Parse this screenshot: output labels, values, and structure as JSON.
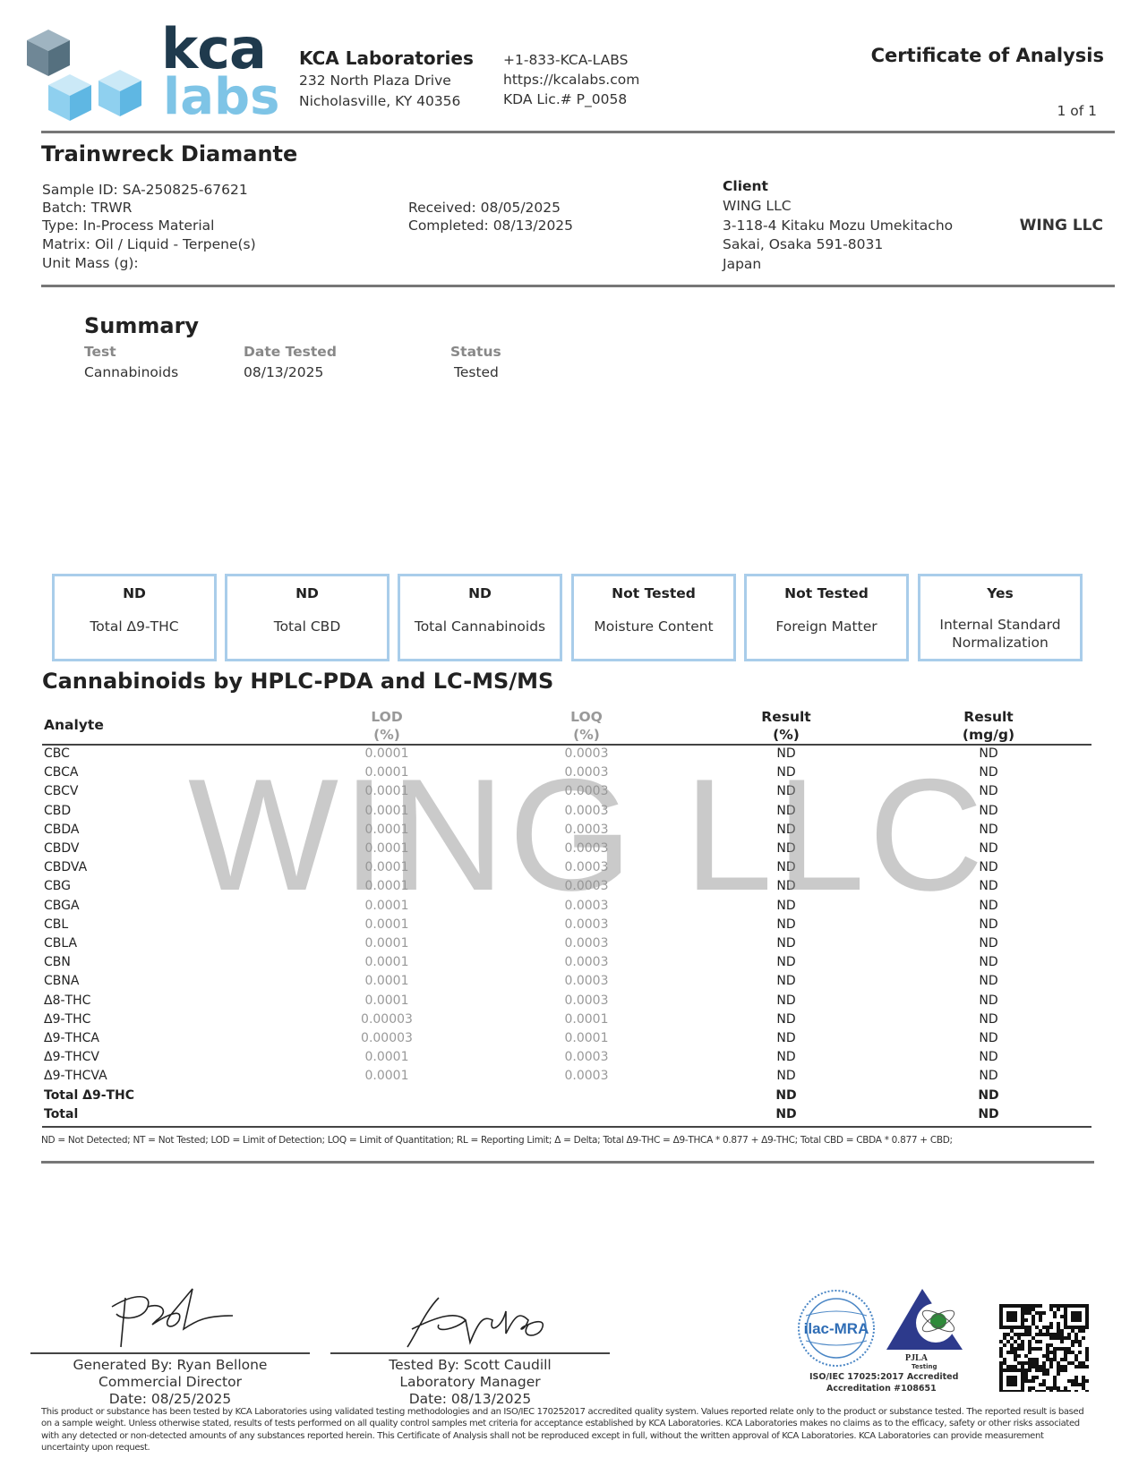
{
  "header": {
    "logo_top": "kca",
    "logo_bottom": "labs",
    "lab_name": "KCA Laboratories",
    "address1": "232 North Plaza Drive",
    "address2": "Nicholasville, KY 40356",
    "phone": "+1-833-KCA-LABS",
    "website": "https://kcalabs.com",
    "license": "KDA Lic.# P_0058",
    "doc_title": "Certificate of Analysis",
    "page": "1 of 1"
  },
  "sample": {
    "name": "Trainwreck Diamante",
    "id": "Sample ID: SA-250825-67621",
    "batch": "Batch: TRWR",
    "type": "Type: In-Process Material",
    "matrix": "Matrix: Oil / Liquid - Terpene(s)",
    "unit_mass": "Unit Mass (g):",
    "received": "Received: 08/05/2025",
    "completed": "Completed: 08/13/2025"
  },
  "client": {
    "label": "Client",
    "name": "WING LLC",
    "addr1": "3-118-4 Kitaku Mozu Umekitacho",
    "addr2": "Sakai, Osaka 591-8031",
    "addr3": "Japan",
    "logo_text": "WING LLC"
  },
  "summary": {
    "title": "Summary",
    "headers": [
      "Test",
      "Date Tested",
      "Status"
    ],
    "row": [
      "Cannabinoids",
      "08/13/2025",
      "Tested"
    ]
  },
  "boxes": [
    {
      "value": "ND",
      "label": "Total Δ9-THC"
    },
    {
      "value": "ND",
      "label": "Total CBD"
    },
    {
      "value": "ND",
      "label": "Total Cannabinoids"
    },
    {
      "value": "Not Tested",
      "label": "Moisture Content"
    },
    {
      "value": "Not Tested",
      "label": "Foreign Matter"
    },
    {
      "value": "Yes",
      "label": "Internal Standard Normalization"
    }
  ],
  "table": {
    "title": "Cannabinoids by HPLC-PDA and LC-MS/MS",
    "watermark": "WING LLC",
    "headers": {
      "analyte": "Analyte",
      "lod": "LOD",
      "lod_unit": "(%)",
      "loq": "LOQ",
      "loq_unit": "(%)",
      "res_pct": "Result",
      "res_pct_unit": "(%)",
      "res_mg": "Result",
      "res_mg_unit": "(mg/g)"
    },
    "rows": [
      [
        "CBC",
        "0.0001",
        "0.0003",
        "ND",
        "ND"
      ],
      [
        "CBCA",
        "0.0001",
        "0.0003",
        "ND",
        "ND"
      ],
      [
        "CBCV",
        "0.0001",
        "0.0003",
        "ND",
        "ND"
      ],
      [
        "CBD",
        "0.0001",
        "0.0003",
        "ND",
        "ND"
      ],
      [
        "CBDA",
        "0.0001",
        "0.0003",
        "ND",
        "ND"
      ],
      [
        "CBDV",
        "0.0001",
        "0.0003",
        "ND",
        "ND"
      ],
      [
        "CBDVA",
        "0.0001",
        "0.0003",
        "ND",
        "ND"
      ],
      [
        "CBG",
        "0.0001",
        "0.0003",
        "ND",
        "ND"
      ],
      [
        "CBGA",
        "0.0001",
        "0.0003",
        "ND",
        "ND"
      ],
      [
        "CBL",
        "0.0001",
        "0.0003",
        "ND",
        "ND"
      ],
      [
        "CBLA",
        "0.0001",
        "0.0003",
        "ND",
        "ND"
      ],
      [
        "CBN",
        "0.0001",
        "0.0003",
        "ND",
        "ND"
      ],
      [
        "CBNA",
        "0.0001",
        "0.0003",
        "ND",
        "ND"
      ],
      [
        "Δ8-THC",
        "0.0001",
        "0.0003",
        "ND",
        "ND"
      ],
      [
        "Δ9-THC",
        "0.00003",
        "0.0001",
        "ND",
        "ND"
      ],
      [
        "Δ9-THCA",
        "0.00003",
        "0.0001",
        "ND",
        "ND"
      ],
      [
        "Δ9-THCV",
        "0.0001",
        "0.0003",
        "ND",
        "ND"
      ],
      [
        "Δ9-THCVA",
        "0.0001",
        "0.0003",
        "ND",
        "ND"
      ],
      [
        "Total Δ9-THC",
        "",
        "",
        "ND",
        "ND"
      ],
      [
        "Total",
        "",
        "",
        "ND",
        "ND"
      ]
    ],
    "footnote": "ND = Not Detected; NT = Not Tested; LOD = Limit of Detection; LOQ = Limit of Quantitation; RL = Reporting Limit; Δ = Delta; Total Δ9-THC = Δ9-THCA * 0.877 + Δ9-THC; Total CBD = CBDA * 0.877 + CBD;"
  },
  "signatures": [
    {
      "line1": "Generated By: Ryan Bellone",
      "line2": "Commercial Director",
      "line3": "Date: 08/25/2025"
    },
    {
      "line1": "Tested By: Scott Caudill",
      "line2": "Laboratory Manager",
      "line3": "Date: 08/13/2025"
    }
  ],
  "accreditation": {
    "ilac": "ilac-MRA",
    "pjla": "PJLA",
    "pjla_sub": "Testing",
    "line1": "ISO/IEC 17025:2017 Accredited",
    "line2": "Accreditation #108651"
  },
  "disclaimer": "This product or substance has been tested by KCA Laboratories using validated testing methodologies and an ISO/IEC 170252017 accredited quality system. Values reported relate only to the product or substance tested. The reported result is based on a sample weight. Unless otherwise stated, results of tests performed on all quality control samples met criteria for acceptance established by KCA Laboratories. KCA Laboratories makes no claims as to the efficacy, safety or other risks associated with any detected or non-detected amounts of any substances reported herein. This Certificate of Analysis shall not be reproduced except in full, without the written approval of KCA Laboratories. KCA Laboratories can provide measurement uncertainty upon request.",
  "colors": {
    "logo_dark": "#1f3a4d",
    "logo_light": "#7ec4e6",
    "box_border": "#a9cdea"
  }
}
